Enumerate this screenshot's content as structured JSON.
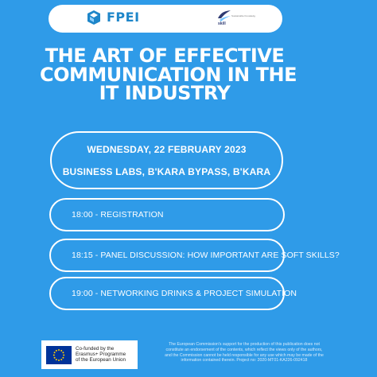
{
  "header": {
    "brand_name": "FPEI",
    "partner_name": "skill",
    "partner_caption": "Sustainable Knowledge & Innovation in Learning"
  },
  "event": {
    "title_lines": [
      "THE ART OF EFFECTIVE",
      "COMMUNICATION IN THE",
      "IT INDUSTRY"
    ],
    "date": "WEDNESDAY, 22 FEBRUARY 2023",
    "location": "BUSINESS LABS, B'KARA BYPASS, B'KARA"
  },
  "agenda": [
    {
      "label": "18:00 - REGISTRATION"
    },
    {
      "label": "18:15 - PANEL DISCUSSION: HOW IMPORTANT ARE SOFT SKILLS?"
    },
    {
      "label": "19:00 - NETWORKING DRINKS & PROJECT SIMULATION"
    }
  ],
  "footer": {
    "eu_lines": [
      "Co-funded by the",
      "Erasmus+ Programme",
      "of the European Union"
    ],
    "disclaimer_lines": [
      "The European Commission's support for the production of this publication does not",
      "constitute an endorsement of the contents, which reflect the views only of the authors,",
      "and the Commission cannot be held responsible for any use which may be made of the",
      "information contained therein. Project no: 2020-MT01-KA226-092418"
    ]
  },
  "colors": {
    "background": "#2f9be8",
    "accent_white": "#ffffff",
    "logo_blue": "#1e86c9",
    "eu_blue": "#003399",
    "eu_star_yellow": "#ffcc00"
  },
  "icons": {
    "brand": "fpei-logo-icon",
    "partner": "skill-logo-icon",
    "eu": "eu-flag-icon"
  }
}
